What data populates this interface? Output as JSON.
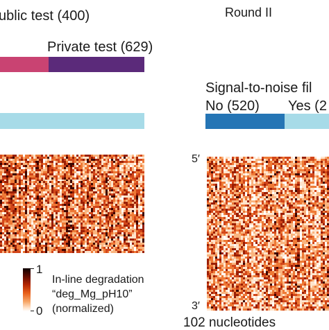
{
  "left_panel": {
    "public_test_label": "ublic test (400)",
    "private_test_label": "Private test (629)",
    "colors": {
      "public": "#c94372",
      "private": "#5b2a7a",
      "light_bar": "#a7dbe8"
    }
  },
  "right_panel": {
    "round_label": "Round II",
    "signal_filter_label": "Signal-to-noise fil",
    "no_label": "No (520)",
    "yes_label": "Yes (2",
    "colors": {
      "no": "#2575b5",
      "yes": "#a7dbe8"
    },
    "five_prime_label": "5′",
    "three_prime_label": "3′",
    "nucleotides_label": "102 nucleotides"
  },
  "legend": {
    "max_label": "1",
    "min_label": "0",
    "line1": "In-line degradation",
    "line2": "“deg_Mg_pH10”",
    "line3": "(normalized)"
  },
  "heatmap_palette": [
    "#ffffff",
    "#ffe4cc",
    "#f9b47f",
    "#ee7a36",
    "#d2461a",
    "#9a1f05",
    "#3d0500"
  ]
}
